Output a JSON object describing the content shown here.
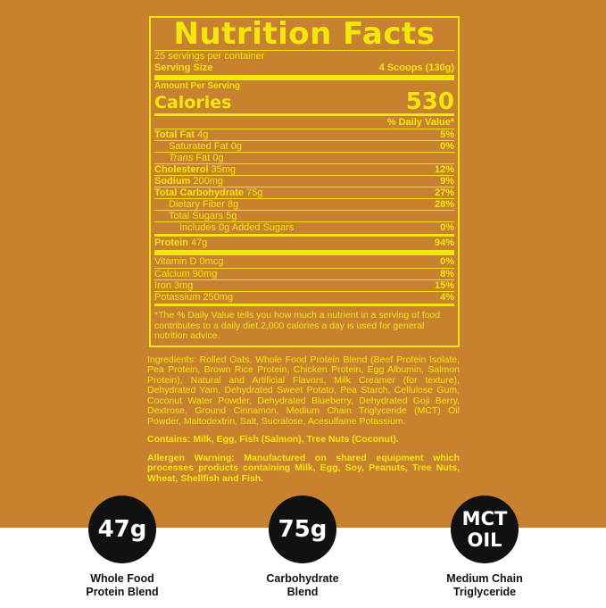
{
  "label": {
    "title": "Nutrition Facts",
    "servings": "25 servings per container",
    "serving_size_label": "Serving Size",
    "serving_size_value": "4 Scoops (130g)",
    "amount_per_serving": "Amount Per Serving",
    "calories_label": "Calories",
    "calories_value": "530",
    "dv_header": "% Daily Value*",
    "rows": [
      {
        "name": "Total Fat",
        "amount": "4g",
        "dv": "5%"
      },
      {
        "name": "Saturated Fat",
        "amount": "0g",
        "dv": "0%"
      },
      {
        "name": "Trans",
        "amount": "Fat 0g",
        "dv": ""
      },
      {
        "name": "Cholesterol",
        "amount": "35mg",
        "dv": "12%"
      },
      {
        "name": "Sodium",
        "amount": "200mg",
        "dv": "9%"
      },
      {
        "name": "Total Carbohydrate",
        "amount": "75g",
        "dv": "27%"
      },
      {
        "name": "Dietary Fiber",
        "amount": "8g",
        "dv": "28%"
      },
      {
        "name": "Total Sugars",
        "amount": "5g",
        "dv": ""
      },
      {
        "name": "Includes 0g Added Sugars",
        "amount": "",
        "dv": "0%"
      },
      {
        "name": "Protein",
        "amount": "47g",
        "dv": "94%"
      },
      {
        "name": "Vitamin D",
        "amount": "0mcg",
        "dv": "0%"
      },
      {
        "name": "Calcium",
        "amount": "90mg",
        "dv": "8%"
      },
      {
        "name": "Iron",
        "amount": "3mg",
        "dv": "15%"
      },
      {
        "name": "Potassium",
        "amount": "250mg",
        "dv": "4%"
      }
    ],
    "footnote": "*The % Daily Value tells you how much a nutrient in a serving of food contributes to a daily diet.2,000 calories a day is used for general nutrition advice."
  },
  "ingredients": "Ingredients: Rolled Oats, Whole Food Protein Blend (Beef Protein Isolate, Pea Protein, Brown Rice Protein, Chicken Protein, Egg Albumin, Salmon Protein), Natural and Artificial Flavors, Milk Creamer (for texture), Dehydrated Yam, Dehydrated Sweet Potato, Pea Starch, Cellulose Gum, Coconut Water Powder, Dehydrated Blueberry, Dehydrated Goji Berry, Dextrose, Ground Cinnamon, Medium Chain Triglyceride (MCT) Oil Powder, Maltodextrin, Salt, Sucralose, Acesulfame Potassium.",
  "contains": "Contains: Milk, Egg, Fish (Salmon), Tree Nuts (Coconut).",
  "allergen": "Allergen Warning: Manufactured on shared equipment which processes products containing Milk, Egg, Soy, Peanuts, Tree Nuts, Wheat, Shellfish and Fish.",
  "badges": [
    {
      "value": "47g",
      "caption1": "Whole Food",
      "caption2": "Protein Blend"
    },
    {
      "value": "75g",
      "caption1": "Carbohydrate",
      "caption2": "Blend"
    },
    {
      "value1": "MCT",
      "value2": "OIL",
      "caption1": "Medium Chain",
      "caption2": "Triglyceride"
    }
  ],
  "colors": {
    "background": "#c8822f",
    "label_text": "#f3e60c",
    "badge": "#111111"
  }
}
